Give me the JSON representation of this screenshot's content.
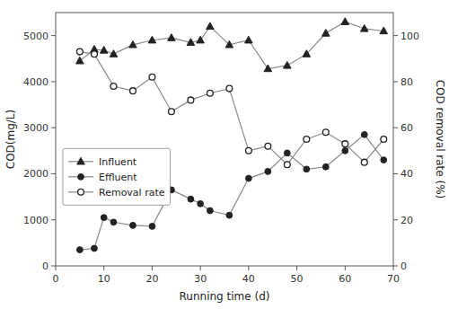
{
  "chart_data": {
    "type": "line",
    "xlabel": "Running time (d)",
    "ylabel": "COD(mg/L)",
    "y2label": "COD removal rate (%)",
    "series": [
      {
        "name": "Influent",
        "color": "#888888",
        "marker": "triangle",
        "x": [
          5,
          8,
          10,
          12,
          16,
          20,
          24,
          28,
          30,
          32,
          36,
          40,
          44,
          48,
          52,
          56,
          60,
          64,
          68
        ],
        "values": [
          4450,
          4700,
          4680,
          4600,
          4800,
          4900,
          4950,
          4850,
          4900,
          5200,
          4800,
          4900,
          4280,
          4350,
          4600,
          5050,
          5300,
          5150,
          5100
        ]
      },
      {
        "name": "Effluent",
        "color": "#888888",
        "marker": "circle",
        "x": [
          5,
          8,
          10,
          12,
          16,
          20,
          24,
          28,
          30,
          32,
          36,
          40,
          44,
          48,
          52,
          56,
          60,
          64,
          68
        ],
        "values": [
          350,
          380,
          1050,
          950,
          880,
          860,
          1650,
          1450,
          1350,
          1200,
          1100,
          1900,
          2050,
          2450,
          2100,
          2150,
          2500,
          2850,
          2300
        ]
      },
      {
        "name": "Removal rate",
        "color": "#888888",
        "marker": "circle-open",
        "axis": "y2",
        "x": [
          5,
          8,
          12,
          16,
          20,
          24,
          28,
          32,
          36,
          40,
          44,
          48,
          52,
          56,
          60,
          64,
          68
        ],
        "values": [
          93,
          92,
          78,
          76,
          82,
          67,
          72,
          75,
          77,
          50,
          52,
          44,
          55,
          58,
          53,
          45,
          55
        ]
      }
    ],
    "xlim": [
      0,
      70
    ],
    "xticks": [
      0,
      10,
      20,
      30,
      40,
      50,
      60,
      70
    ],
    "ylim": [
      0,
      5500
    ],
    "yticks": [
      0,
      1000,
      2000,
      3000,
      4000,
      5000
    ],
    "y2lim": [
      0,
      110
    ],
    "y2ticks": [
      0,
      20,
      40,
      60,
      80,
      100
    ],
    "grid": false,
    "legend": "lower left"
  }
}
